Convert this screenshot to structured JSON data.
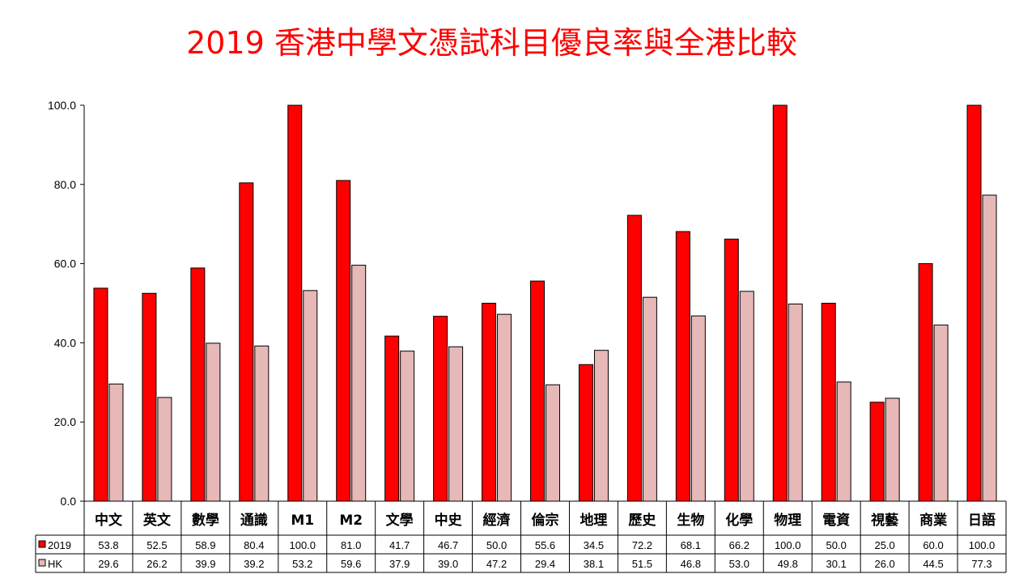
{
  "title": "2019  香港中學文憑試科目優良率與全港比較",
  "chart_data": {
    "type": "bar",
    "title": "2019  香港中學文憑試科目優良率與全港比較",
    "categories": [
      "中文",
      "英文",
      "數學",
      "通識",
      "M1",
      "M2",
      "文學",
      "中史",
      "經濟",
      "倫宗",
      "地理",
      "歷史",
      "生物",
      "化學",
      "物理",
      "電資",
      "視藝",
      "商業",
      "日語"
    ],
    "series": [
      {
        "name": "2019",
        "color": "#ff0000",
        "values": [
          53.8,
          52.5,
          58.9,
          80.4,
          100.0,
          81.0,
          41.7,
          46.7,
          50.0,
          55.6,
          34.5,
          72.2,
          68.1,
          66.2,
          100.0,
          50.0,
          25.0,
          60.0,
          100.0
        ]
      },
      {
        "name": "HK",
        "color": "#e6b8b7",
        "values": [
          29.6,
          26.2,
          39.9,
          39.2,
          53.2,
          59.6,
          37.9,
          39.0,
          47.2,
          29.4,
          38.1,
          51.5,
          46.8,
          53.0,
          49.8,
          30.1,
          26.0,
          44.5,
          77.3
        ]
      }
    ],
    "yticks": [
      "0.0",
      "20.0",
      "40.0",
      "60.0",
      "80.0",
      "100.0"
    ],
    "ylim": [
      0,
      100
    ],
    "data_table": true,
    "grid": false
  }
}
